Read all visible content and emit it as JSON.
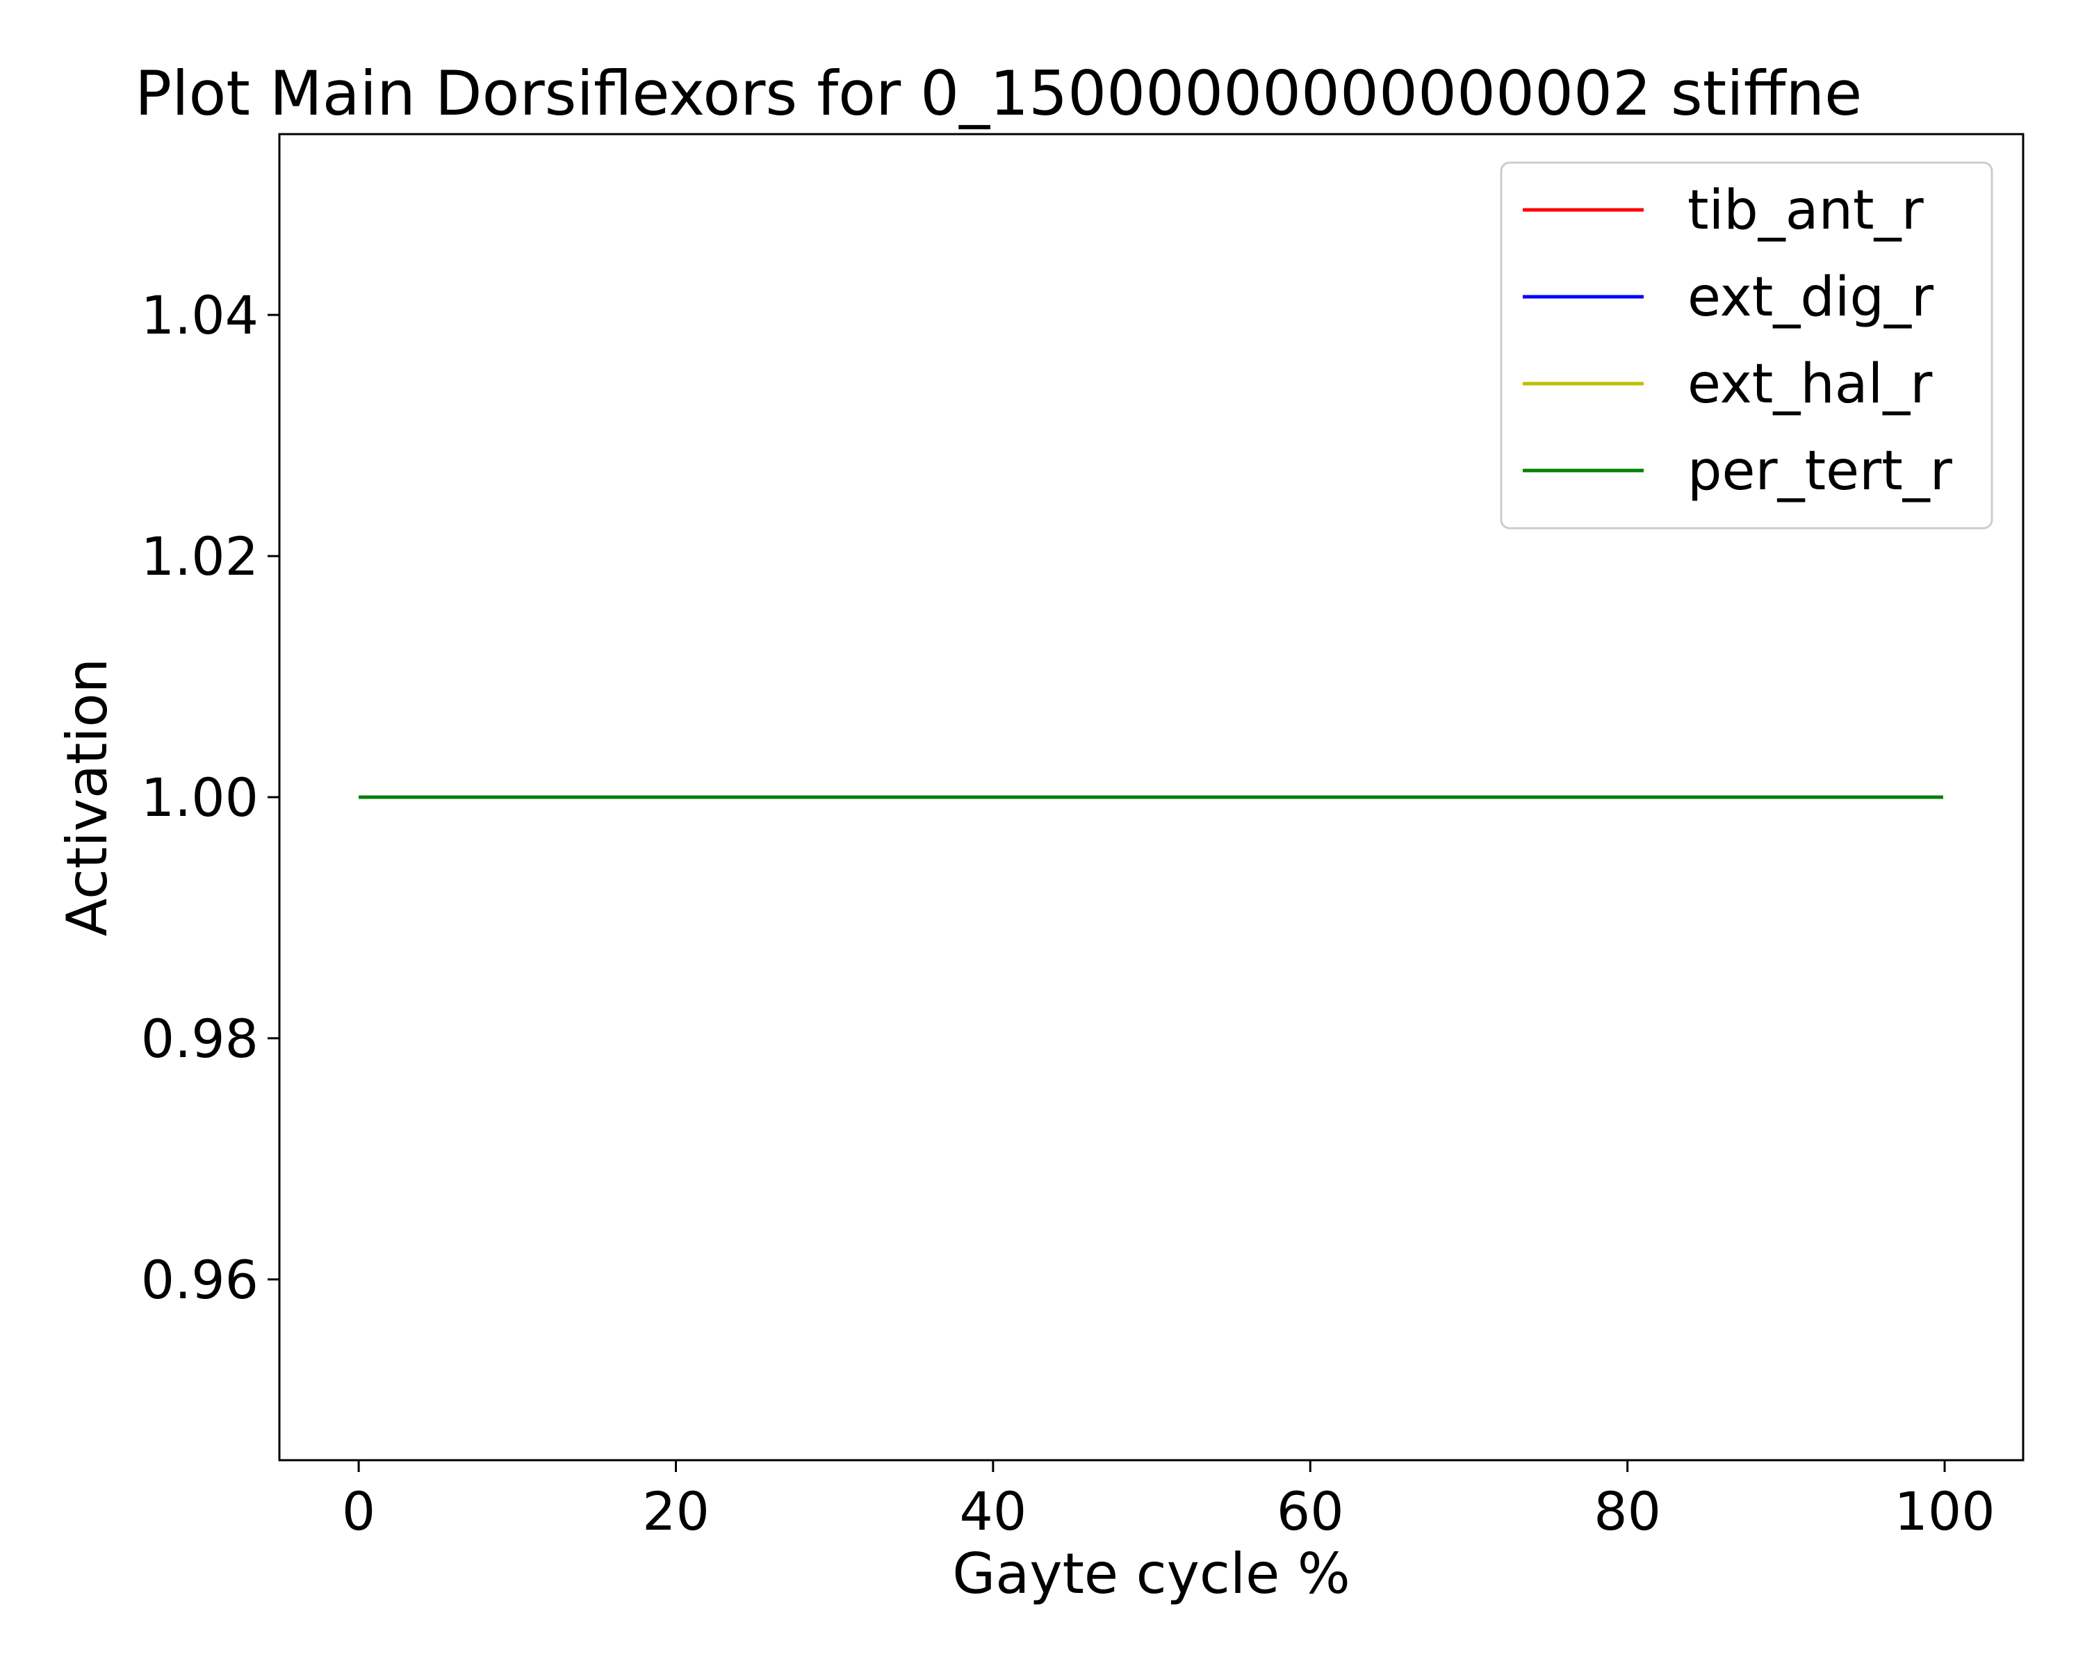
{
  "chart_data": {
    "type": "line",
    "title": "Plot Main Dorsiflexors for 0_15000000000000002 stiffne",
    "xlabel": "Gayte cycle %",
    "ylabel": "Activation",
    "xlim": [
      -5,
      104.95
    ],
    "ylim": [
      0.945,
      1.055
    ],
    "xticks": [
      0,
      20,
      40,
      60,
      80,
      100
    ],
    "yticks": [
      0.96,
      0.98,
      1.0,
      1.02,
      1.04
    ],
    "xtick_labels": [
      "0",
      "20",
      "40",
      "60",
      "80",
      "100"
    ],
    "ytick_labels": [
      "0.96",
      "0.98",
      "1.00",
      "1.02",
      "1.04"
    ],
    "grid": false,
    "legend_position": "top-right",
    "x": [
      0,
      99.9
    ],
    "series": [
      {
        "name": "tib_ant_r",
        "color": "#ff0000",
        "values": [
          1.0,
          1.0
        ]
      },
      {
        "name": "ext_dig_r",
        "color": "#0000ff",
        "values": [
          1.0,
          1.0
        ]
      },
      {
        "name": "ext_hal_r",
        "color": "#bfbf00",
        "values": [
          1.0,
          1.0
        ]
      },
      {
        "name": "per_tert_r",
        "color": "#008000",
        "values": [
          1.0,
          1.0
        ]
      }
    ]
  }
}
